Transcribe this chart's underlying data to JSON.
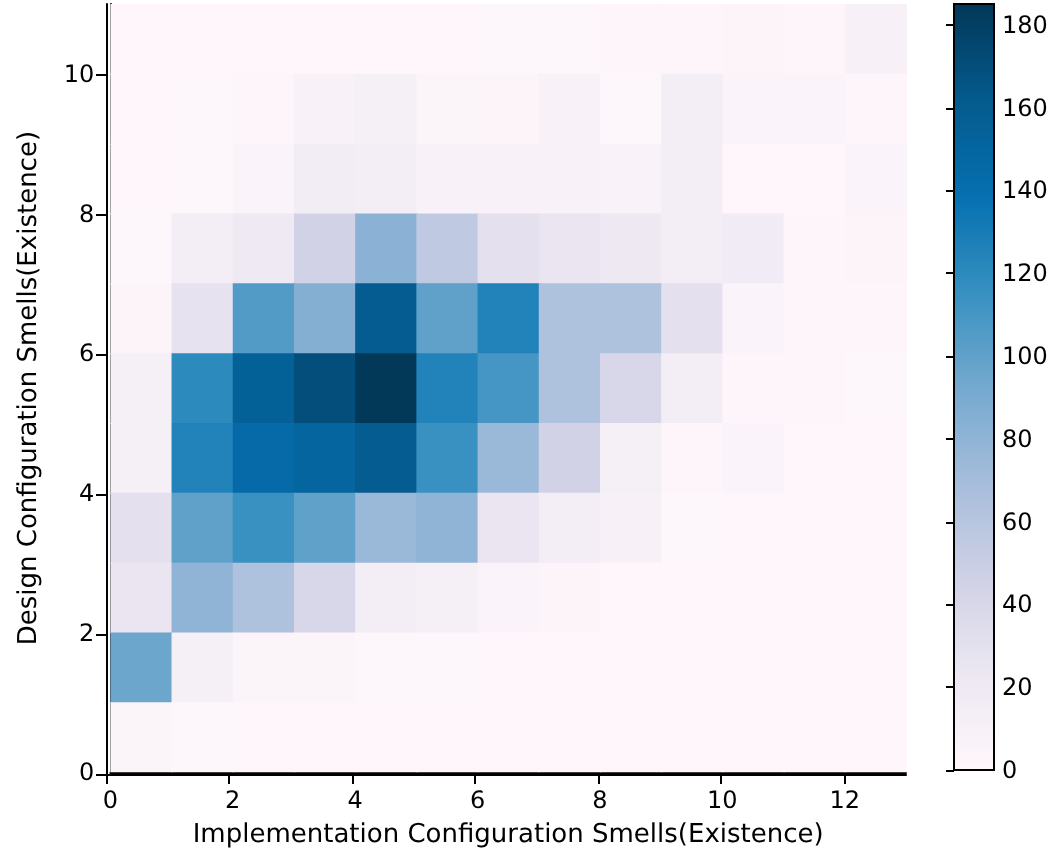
{
  "chart_data": {
    "type": "heatmap",
    "xlabel": "Implementation Configuration Smells(Existence)",
    "ylabel": "Design Configuration Smells(Existence)",
    "xlim": [
      0,
      13
    ],
    "xticks": [
      0,
      2,
      4,
      6,
      8,
      10,
      12
    ],
    "ylim": [
      0,
      11
    ],
    "yticks": [
      0,
      2,
      4,
      6,
      8,
      10
    ],
    "clim": [
      0,
      185
    ],
    "cticks": [
      0,
      20,
      40,
      60,
      80,
      100,
      120,
      140,
      160,
      180
    ],
    "cells": [
      [
        1,
        1,
        1,
        1,
        1,
        1,
        2,
        2,
        3,
        3,
        4,
        3,
        10
      ],
      [
        1,
        2,
        3,
        8,
        12,
        5,
        4,
        8,
        2,
        14,
        6,
        6,
        3
      ],
      [
        1,
        2,
        6,
        16,
        14,
        8,
        8,
        8,
        7,
        14,
        1,
        1,
        6
      ],
      [
        2,
        14,
        20,
        45,
        82,
        55,
        30,
        25,
        22,
        14,
        18,
        3,
        4
      ],
      [
        4,
        28,
        105,
        85,
        160,
        100,
        125,
        65,
        65,
        30,
        6,
        3,
        3
      ],
      [
        12,
        120,
        155,
        170,
        185,
        125,
        110,
        65,
        40,
        14,
        3,
        3,
        2
      ],
      [
        12,
        125,
        145,
        150,
        160,
        115,
        75,
        45,
        12,
        3,
        6,
        1,
        1
      ],
      [
        30,
        100,
        115,
        100,
        75,
        80,
        25,
        14,
        10,
        2,
        1,
        1,
        1
      ],
      [
        25,
        80,
        65,
        40,
        14,
        12,
        6,
        4,
        1,
        1,
        1,
        1,
        1
      ],
      [
        95,
        12,
        5,
        5,
        2,
        2,
        1,
        1,
        1,
        1,
        1,
        1,
        1
      ],
      [
        5,
        2,
        1,
        1,
        1,
        1,
        1,
        1,
        1,
        1,
        1,
        1,
        1
      ]
    ]
  }
}
